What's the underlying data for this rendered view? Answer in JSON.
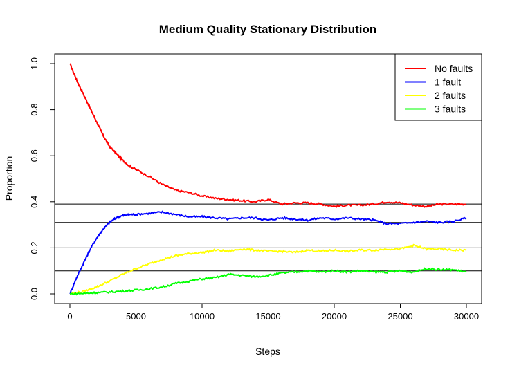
{
  "chart_data": {
    "type": "line",
    "title": "Medium Quality Stationary Distribution",
    "xlabel": "Steps",
    "ylabel": "Proportion",
    "xlim": [
      0,
      30000
    ],
    "ylim": [
      0.0,
      1.0
    ],
    "x_ticks": [
      0,
      5000,
      10000,
      15000,
      20000,
      25000,
      30000
    ],
    "y_ticks": [
      "0.0",
      "0.2",
      "0.4",
      "0.6",
      "0.8",
      "1.0"
    ],
    "legend_position": "top-right",
    "reference_lines": [
      0.39,
      0.31,
      0.2,
      0.1
    ],
    "series": [
      {
        "name": "No faults",
        "color": "#ff0000",
        "x": [
          0,
          500,
          1000,
          1500,
          2000,
          2500,
          3000,
          3500,
          4000,
          4500,
          5000,
          6000,
          7000,
          8000,
          9000,
          10000,
          11000,
          12000,
          13000,
          14000,
          15000,
          16000,
          17000,
          18000,
          19000,
          20000,
          21000,
          22000,
          23000,
          24000,
          25000,
          26000,
          27000,
          28000,
          29000,
          30000
        ],
        "values": [
          1.0,
          0.93,
          0.87,
          0.81,
          0.75,
          0.69,
          0.64,
          0.61,
          0.58,
          0.555,
          0.54,
          0.51,
          0.475,
          0.45,
          0.44,
          0.425,
          0.415,
          0.41,
          0.405,
          0.4,
          0.41,
          0.39,
          0.395,
          0.395,
          0.39,
          0.38,
          0.385,
          0.385,
          0.39,
          0.4,
          0.395,
          0.385,
          0.38,
          0.39,
          0.39,
          0.39
        ]
      },
      {
        "name": "1 fault",
        "color": "#0000ff",
        "x": [
          0,
          500,
          1000,
          1500,
          2000,
          2500,
          3000,
          3500,
          4000,
          4500,
          5000,
          6000,
          7000,
          8000,
          9000,
          10000,
          11000,
          12000,
          13000,
          14000,
          15000,
          16000,
          17000,
          18000,
          19000,
          20000,
          21000,
          22000,
          23000,
          24000,
          25000,
          26000,
          27000,
          28000,
          29000,
          30000
        ],
        "values": [
          0.0,
          0.07,
          0.13,
          0.19,
          0.24,
          0.28,
          0.31,
          0.33,
          0.34,
          0.345,
          0.345,
          0.35,
          0.355,
          0.345,
          0.335,
          0.335,
          0.33,
          0.325,
          0.33,
          0.33,
          0.32,
          0.33,
          0.325,
          0.32,
          0.33,
          0.325,
          0.33,
          0.325,
          0.32,
          0.305,
          0.305,
          0.31,
          0.315,
          0.31,
          0.315,
          0.33
        ]
      },
      {
        "name": "2 faults",
        "color": "#ffff00",
        "x": [
          0,
          1000,
          2000,
          3000,
          4000,
          5000,
          6000,
          7000,
          8000,
          9000,
          10000,
          11000,
          12000,
          13000,
          14000,
          15000,
          16000,
          17000,
          18000,
          19000,
          20000,
          21000,
          22000,
          23000,
          24000,
          25000,
          26000,
          27000,
          28000,
          29000,
          30000
        ],
        "values": [
          0.0,
          0.01,
          0.03,
          0.055,
          0.085,
          0.11,
          0.13,
          0.15,
          0.165,
          0.175,
          0.18,
          0.19,
          0.185,
          0.195,
          0.19,
          0.185,
          0.185,
          0.18,
          0.19,
          0.185,
          0.19,
          0.185,
          0.19,
          0.19,
          0.195,
          0.195,
          0.21,
          0.195,
          0.195,
          0.19,
          0.19
        ]
      },
      {
        "name": "3 faults",
        "color": "#00ff00",
        "x": [
          0,
          1000,
          2000,
          3000,
          4000,
          5000,
          6000,
          7000,
          8000,
          9000,
          10000,
          11000,
          12000,
          13000,
          14000,
          15000,
          16000,
          17000,
          18000,
          19000,
          20000,
          21000,
          22000,
          23000,
          24000,
          25000,
          26000,
          27000,
          28000,
          29000,
          30000
        ],
        "values": [
          0.0,
          0.002,
          0.005,
          0.008,
          0.012,
          0.016,
          0.022,
          0.03,
          0.045,
          0.055,
          0.065,
          0.07,
          0.085,
          0.08,
          0.075,
          0.08,
          0.09,
          0.095,
          0.1,
          0.095,
          0.1,
          0.095,
          0.1,
          0.095,
          0.095,
          0.1,
          0.095,
          0.11,
          0.105,
          0.105,
          0.095
        ]
      }
    ]
  }
}
